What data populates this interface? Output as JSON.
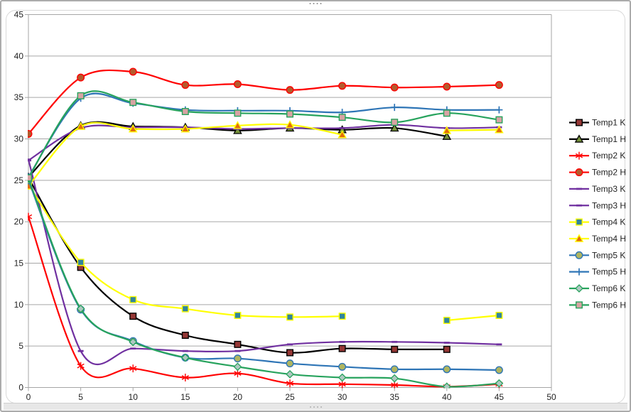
{
  "window": {
    "top_handle_dots": 4,
    "bottom_handle_dots": 4
  },
  "colors": {
    "background": "#FFFFFF",
    "frame_border": "#ABABAB",
    "chart_border": "#D8D8D8",
    "gridline": "#A6A6A6",
    "axis_line": "#A6A6A6",
    "tick_text": "#1F1F1F",
    "legend_text": "#1F1F1F"
  },
  "chart_data": {
    "type": "line",
    "smooth": true,
    "title": "",
    "xlabel": "",
    "ylabel": "",
    "grid": "horizontal-major",
    "legend_position": "right",
    "x": [
      0,
      5,
      10,
      15,
      20,
      25,
      30,
      35,
      40,
      45
    ],
    "x_axis": {
      "min": 0,
      "max": 50,
      "step": 5,
      "tick_labels": [
        "0",
        "5",
        "10",
        "15",
        "20",
        "25",
        "30",
        "35",
        "40",
        "45",
        "50"
      ]
    },
    "y_axis": {
      "min": 0,
      "max": 45,
      "step": 5,
      "tick_labels": [
        "0",
        "5",
        "10",
        "15",
        "20",
        "25",
        "30",
        "35",
        "40",
        "45"
      ]
    },
    "series": [
      {
        "name": "Temp1 K",
        "color": "#000000",
        "marker": "square",
        "marker_fill": "#953735",
        "marker_stroke": "#000000",
        "values": [
          25.3,
          14.5,
          8.6,
          6.3,
          5.2,
          4.2,
          4.7,
          4.6,
          4.6,
          null
        ]
      },
      {
        "name": "Temp1 H",
        "color": "#000000",
        "marker": "triangle",
        "marker_fill": "#77933C",
        "marker_stroke": "#000000",
        "values": [
          25.4,
          31.6,
          31.5,
          31.4,
          31.0,
          31.3,
          31.1,
          31.3,
          30.3,
          null
        ]
      },
      {
        "name": "Temp2 K",
        "color": "#FF0000",
        "marker": "star",
        "marker_fill": "none",
        "marker_stroke": "#FF0000",
        "values": [
          20.6,
          2.6,
          2.3,
          1.2,
          1.7,
          0.5,
          0.4,
          0.3,
          0.1,
          0.4
        ]
      },
      {
        "name": "Temp2 H",
        "color": "#FF0000",
        "marker": "circle",
        "marker_fill": "#B45B2D",
        "marker_stroke": "#FF0000",
        "values": [
          30.6,
          37.4,
          38.1,
          36.5,
          36.6,
          35.9,
          36.4,
          36.2,
          36.3,
          36.5
        ]
      },
      {
        "name": "Temp3 K",
        "color": "#7030A0",
        "marker": "dash",
        "marker_fill": "#7030A0",
        "marker_stroke": "#7030A0",
        "values": [
          27.5,
          4.4,
          4.7,
          4.4,
          4.4,
          5.2,
          5.5,
          5.5,
          5.4,
          5.2
        ]
      },
      {
        "name": "Temp3 H",
        "color": "#7030A0",
        "marker": "dash",
        "marker_fill": "#7030A0",
        "marker_stroke": "#7030A0",
        "values": [
          27.4,
          31.3,
          31.4,
          31.4,
          31.2,
          31.3,
          31.3,
          31.7,
          31.3,
          31.4
        ]
      },
      {
        "name": "Temp4 K",
        "color": "#FFFF00",
        "marker": "square",
        "marker_fill": "#31859C",
        "marker_stroke": "#FFFF00",
        "values": [
          24.5,
          15.1,
          10.6,
          9.5,
          8.7,
          8.5,
          8.6,
          null,
          8.1,
          8.7
        ]
      },
      {
        "name": "Temp4 H",
        "color": "#FFFF00",
        "marker": "triangle",
        "marker_fill": "#E36C0A",
        "marker_stroke": "#FFFF00",
        "values": [
          24.3,
          31.5,
          31.2,
          31.2,
          31.6,
          31.7,
          30.5,
          null,
          31.0,
          31.1
        ]
      },
      {
        "name": "Temp5 K",
        "color": "#2E75B6",
        "marker": "circle",
        "marker_fill": "#AFB560",
        "marker_stroke": "#2E75B6",
        "values": [
          25.0,
          9.4,
          5.6,
          3.6,
          3.5,
          2.9,
          2.5,
          2.2,
          2.2,
          2.1
        ]
      },
      {
        "name": "Temp5 H",
        "color": "#2E75B6",
        "marker": "plus",
        "marker_fill": "none",
        "marker_stroke": "#2E75B6",
        "values": [
          25.4,
          34.9,
          34.3,
          33.5,
          33.4,
          33.4,
          33.2,
          33.8,
          33.5,
          33.5
        ]
      },
      {
        "name": "Temp6 K",
        "color": "#27A35D",
        "marker": "diamond",
        "marker_fill": "#AEC8C1",
        "marker_stroke": "#27A35D",
        "values": [
          25.2,
          9.5,
          5.5,
          3.6,
          2.5,
          1.6,
          1.2,
          1.1,
          0.1,
          0.5
        ]
      },
      {
        "name": "Temp6 H",
        "color": "#27A35D",
        "marker": "square",
        "marker_fill": "#D8A3A3",
        "marker_stroke": "#27A35D",
        "values": [
          25.3,
          35.2,
          34.4,
          33.3,
          33.1,
          33.0,
          32.6,
          32.0,
          33.1,
          32.3
        ]
      }
    ]
  }
}
